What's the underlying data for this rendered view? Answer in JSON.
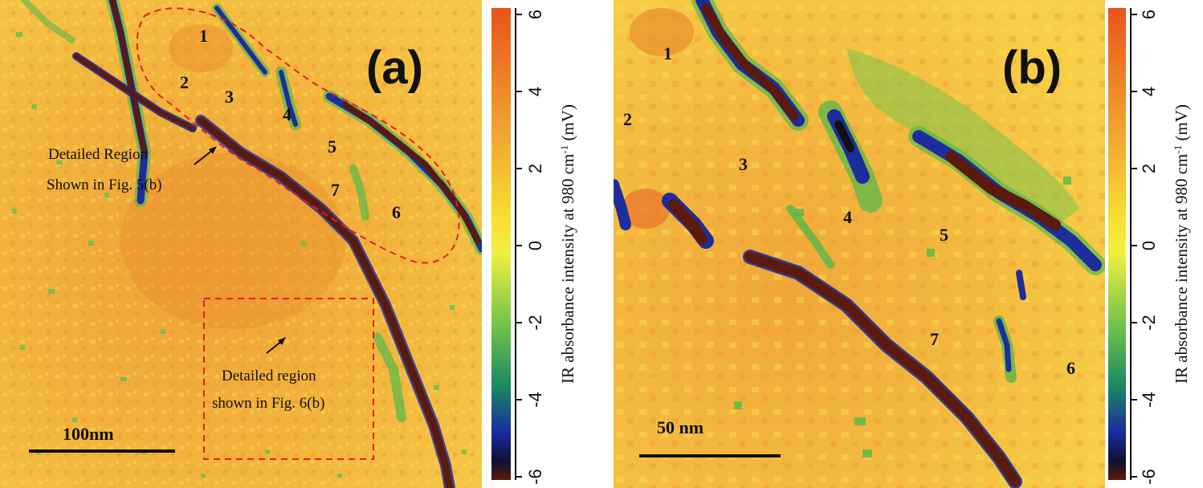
{
  "panels": [
    {
      "id": "a",
      "letter": "(a)",
      "region_numbers": [
        "1",
        "2",
        "3",
        "4",
        "5",
        "6",
        "7"
      ],
      "annotation_1": [
        "Detailed Region",
        "Shown in Fig. 5(b)"
      ],
      "annotation_2": [
        "Detailed region",
        "shown in Fig. 6(b)"
      ],
      "scale_bar": "100nm"
    },
    {
      "id": "b",
      "letter": "(b)",
      "region_numbers": [
        "1",
        "2",
        "3",
        "4",
        "5",
        "6",
        "7"
      ],
      "scale_bar": "50 nm"
    }
  ],
  "colorbar": {
    "ticks": [
      "6",
      "4",
      "2",
      "0",
      "-2",
      "-4",
      "-6"
    ],
    "label_main": "IR absorbance intensity at 980 cm",
    "label_sup": "-1",
    "label_unit": " (mV)"
  },
  "colors": {
    "map_base": "#f0b43a",
    "map_hot": "#e8892a",
    "feature_dark": "#5a1a0c",
    "feature_blue": "#1a2a9a",
    "feature_green": "#4aa84a",
    "annotation_red": "#e02020"
  }
}
